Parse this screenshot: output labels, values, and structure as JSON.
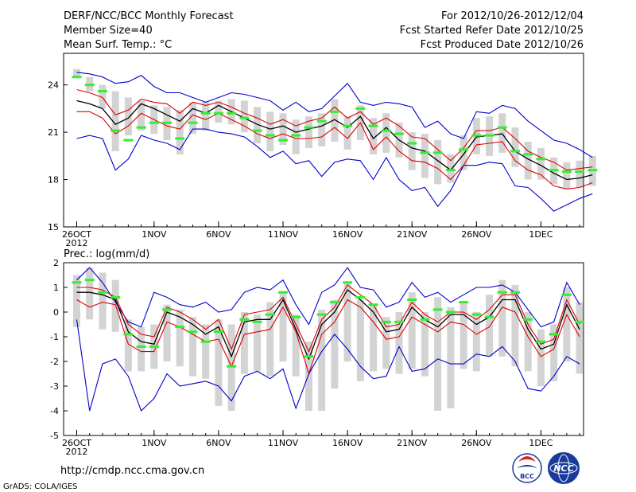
{
  "header": {
    "title": "DERF/NCC/BCC Monthly Forecast",
    "member_size": "Member Size=40",
    "period": "For 2012/10/26-2012/12/04",
    "started": "Fcst Started Refer Date 2012/10/25",
    "produced": "Fcst Produced Date 2012/10/26"
  },
  "footer": {
    "url": "http://cmdp.ncc.cma.gov.cn",
    "grads": "GrADS: COLA/IGES",
    "logo1": "BCC",
    "logo2": "NCC"
  },
  "colors": {
    "bar": "#d3d3d3",
    "observed": "#33ee33",
    "envelope": "#0000cc",
    "spread": "#dd0000",
    "mean": "#000000"
  },
  "chart_data": [
    {
      "type": "line",
      "title": "Mean Surf. Temp.: °C",
      "ylim": [
        15,
        26
      ],
      "yticks": [
        15,
        18,
        21,
        24
      ],
      "xticks": [
        {
          "day": 0,
          "label": "26OCT",
          "label2": "2012"
        },
        {
          "day": 6,
          "label": "1NOV"
        },
        {
          "day": 11,
          "label": "6NOV"
        },
        {
          "day": 16,
          "label": "11NOV"
        },
        {
          "day": 21,
          "label": "16NOV"
        },
        {
          "day": 26,
          "label": "21NOV"
        },
        {
          "day": 31,
          "label": "26NOV"
        },
        {
          "day": 36,
          "label": "1DEC"
        }
      ],
      "series": [
        {
          "name": "upper",
          "values": [
            24.8,
            24.7,
            24.5,
            24.1,
            24.2,
            24.6,
            23.9,
            23.5,
            23.5,
            23.2,
            22.9,
            23.2,
            23.5,
            23.4,
            23.2,
            23.0,
            22.4,
            22.9,
            22.3,
            22.5,
            23.3,
            24.1,
            22.9,
            22.7,
            22.9,
            22.8,
            22.6,
            21.3,
            21.7,
            20.9,
            20.6,
            22.3,
            22.2,
            22.7,
            22.5,
            21.7,
            21.1,
            20.5,
            20.3,
            19.9,
            19.4
          ]
        },
        {
          "name": "spread_hi",
          "values": [
            23.7,
            23.5,
            23.2,
            22.1,
            22.4,
            23.1,
            22.9,
            22.8,
            22.2,
            22.9,
            22.7,
            22.9,
            22.6,
            22.2,
            21.9,
            21.5,
            21.8,
            21.4,
            21.7,
            21.9,
            22.6,
            21.9,
            22.3,
            21.5,
            21.9,
            21.4,
            20.7,
            20.6,
            19.9,
            19.2,
            20.0,
            21.1,
            21.1,
            21.3,
            20.6,
            19.8,
            19.4,
            19.1,
            18.6,
            18.7,
            18.8
          ]
        },
        {
          "name": "mean",
          "values": [
            23.0,
            22.8,
            22.5,
            21.5,
            21.9,
            22.8,
            22.5,
            22.1,
            21.7,
            22.5,
            22.2,
            22.7,
            22.3,
            21.9,
            21.5,
            21.2,
            21.4,
            21.0,
            21.2,
            21.4,
            21.8,
            21.3,
            22.0,
            20.6,
            21.3,
            20.5,
            20.0,
            19.8,
            19.2,
            18.6,
            19.6,
            20.7,
            20.8,
            20.9,
            19.8,
            19.3,
            18.9,
            18.4,
            18.0,
            18.1,
            18.3
          ]
        },
        {
          "name": "spread_lo",
          "values": [
            22.3,
            22.3,
            21.9,
            20.9,
            21.4,
            22.2,
            21.8,
            21.4,
            21.2,
            22.1,
            21.8,
            22.2,
            21.8,
            21.4,
            20.9,
            20.6,
            20.9,
            20.6,
            20.6,
            20.7,
            21.3,
            20.6,
            21.6,
            19.9,
            20.7,
            19.8,
            19.2,
            19.1,
            18.7,
            18.0,
            18.9,
            20.2,
            20.3,
            20.4,
            19.2,
            18.6,
            18.3,
            17.6,
            17.4,
            17.5,
            17.8
          ]
        },
        {
          "name": "lower",
          "values": [
            20.6,
            20.8,
            20.6,
            18.6,
            19.3,
            20.8,
            20.5,
            20.3,
            19.9,
            21.2,
            21.2,
            21.0,
            20.9,
            20.7,
            20.1,
            19.4,
            19.8,
            19.0,
            19.2,
            18.2,
            19.1,
            19.3,
            19.2,
            18.0,
            19.4,
            18.0,
            17.3,
            17.5,
            16.3,
            17.3,
            18.9,
            18.9,
            19.1,
            19.0,
            17.6,
            17.5,
            16.8,
            16.0,
            16.4,
            16.8,
            17.1
          ]
        }
      ],
      "bars": [
        [
          24.5,
          25.0
        ],
        [
          23.6,
          24.5
        ],
        [
          22.5,
          24.0
        ],
        [
          19.8,
          23.6
        ],
        [
          20.8,
          23.2
        ],
        [
          21.1,
          23.0
        ],
        [
          20.9,
          22.7
        ],
        [
          20.5,
          22.6
        ],
        [
          19.6,
          22.4
        ],
        [
          20.9,
          22.9
        ],
        [
          21.1,
          22.9
        ],
        [
          21.6,
          23.0
        ],
        [
          21.5,
          23.1
        ],
        [
          21.0,
          23.0
        ],
        [
          20.3,
          22.6
        ],
        [
          19.8,
          22.3
        ],
        [
          20.2,
          22.2
        ],
        [
          19.6,
          21.8
        ],
        [
          20.0,
          22.0
        ],
        [
          20.1,
          22.2
        ],
        [
          20.4,
          23.1
        ],
        [
          19.9,
          22.0
        ],
        [
          20.5,
          22.7
        ],
        [
          19.6,
          21.9
        ],
        [
          19.7,
          22.2
        ],
        [
          19.4,
          21.6
        ],
        [
          18.6,
          21.0
        ],
        [
          18.1,
          20.9
        ],
        [
          17.7,
          20.5
        ],
        [
          17.8,
          19.6
        ],
        [
          18.6,
          20.8
        ],
        [
          19.6,
          21.9
        ],
        [
          19.5,
          22.0
        ],
        [
          19.7,
          22.2
        ],
        [
          18.8,
          21.3
        ],
        [
          18.0,
          20.4
        ],
        [
          18.0,
          20.0
        ],
        [
          17.7,
          19.4
        ],
        [
          17.4,
          19.1
        ],
        [
          17.5,
          19.2
        ],
        [
          17.6,
          19.5
        ]
      ],
      "observed": [
        24.5,
        24.0,
        23.6,
        21.1,
        20.5,
        21.3,
        21.6,
        21.6,
        20.6,
        21.6,
        22.2,
        22.2,
        22.2,
        21.9,
        21.1,
        20.8,
        20.5,
        20.8,
        21.3,
        21.7,
        22.3,
        21.4,
        22.5,
        21.4,
        21.1,
        20.9,
        20.3,
        19.7,
        19.7,
        18.6,
        19.9,
        20.8,
        20.8,
        21.3,
        19.8,
        19.6,
        19.3,
        18.6,
        18.5,
        18.5,
        18.6
      ]
    },
    {
      "type": "line",
      "title": "Prec.: log(mm/d)",
      "ylim": [
        -5,
        2
      ],
      "yticks": [
        -5,
        -4,
        -3,
        -2,
        -1,
        0,
        1,
        2
      ],
      "xticks": [
        {
          "day": 0,
          "label": "26OCT",
          "label2": "2012"
        },
        {
          "day": 6,
          "label": "1NOV"
        },
        {
          "day": 11,
          "label": "6NOV"
        },
        {
          "day": 16,
          "label": "11NOV"
        },
        {
          "day": 21,
          "label": "16NOV"
        },
        {
          "day": 26,
          "label": "21NOV"
        },
        {
          "day": 31,
          "label": "26NOV"
        },
        {
          "day": 36,
          "label": "1DEC"
        }
      ],
      "series": [
        {
          "name": "upper",
          "values": [
            1.3,
            1.8,
            1.2,
            0.4,
            -0.4,
            -0.6,
            0.8,
            0.6,
            0.3,
            0.2,
            0.4,
            0.0,
            0.1,
            0.8,
            1.0,
            0.9,
            1.3,
            0.3,
            -0.5,
            0.8,
            1.1,
            1.8,
            1.0,
            0.9,
            0.2,
            0.4,
            1.2,
            0.6,
            0.8,
            0.4,
            0.7,
            1.0,
            1.0,
            1.1,
            0.8,
            0.1,
            -0.6,
            -0.4,
            1.2,
            0.3
          ]
        },
        {
          "name": "spread_hi",
          "values": [
            1.0,
            1.0,
            0.9,
            0.6,
            -0.5,
            -0.9,
            -1.0,
            0.2,
            0.0,
            -0.3,
            -0.7,
            -0.3,
            -1.5,
            -0.1,
            0.0,
            0.1,
            0.6,
            -0.5,
            -1.6,
            -0.3,
            0.2,
            1.1,
            0.7,
            0.3,
            -0.6,
            -0.5,
            0.4,
            -0.1,
            -0.4,
            0.0,
            0.0,
            -0.3,
            0.1,
            0.7,
            0.7,
            -0.5,
            -1.3,
            -1.1,
            0.5,
            -0.5
          ]
        },
        {
          "name": "mean",
          "values": [
            0.8,
            0.8,
            0.7,
            0.5,
            -0.8,
            -1.2,
            -1.3,
            0.0,
            -0.2,
            -0.5,
            -0.9,
            -0.6,
            -1.8,
            -0.4,
            -0.3,
            -0.3,
            0.5,
            -0.7,
            -1.9,
            -0.5,
            0.0,
            0.9,
            0.5,
            0.0,
            -0.8,
            -0.7,
            0.2,
            -0.3,
            -0.6,
            -0.1,
            -0.1,
            -0.5,
            -0.2,
            0.5,
            0.5,
            -0.7,
            -1.5,
            -1.3,
            0.3,
            -0.7
          ]
        },
        {
          "name": "spread_lo",
          "values": [
            0.5,
            0.2,
            0.4,
            0.3,
            -1.3,
            -1.6,
            -1.6,
            -0.4,
            -0.6,
            -0.9,
            -1.2,
            -1.1,
            -2.2,
            -0.9,
            -0.8,
            -0.7,
            0.2,
            -0.8,
            -2.5,
            -0.9,
            -0.4,
            0.5,
            0.2,
            -0.4,
            -1.1,
            -1.0,
            -0.2,
            -0.5,
            -0.8,
            -0.4,
            -0.5,
            -0.9,
            -0.6,
            0.2,
            0.0,
            -1.0,
            -1.8,
            -1.5,
            -0.1,
            -1.0
          ]
        },
        {
          "name": "lower",
          "values": [
            -0.3,
            -4.0,
            -2.1,
            -1.9,
            -2.6,
            -4.0,
            -3.5,
            -2.5,
            -3.0,
            -2.9,
            -2.8,
            -3.0,
            -3.6,
            -2.6,
            -2.4,
            -2.7,
            -2.3,
            -3.9,
            -2.5,
            -1.6,
            -0.9,
            -1.5,
            -2.2,
            -2.7,
            -2.6,
            -1.4,
            -2.4,
            -2.3,
            -1.9,
            -2.1,
            -2.1,
            -1.7,
            -1.8,
            -1.4,
            -2.0,
            -3.1,
            -3.2,
            -2.6,
            -1.8,
            -2.1
          ]
        }
      ],
      "bars": [
        [
          -0.6,
          1.5
        ],
        [
          -0.3,
          1.8
        ],
        [
          -0.7,
          1.6
        ],
        [
          -0.8,
          1.3
        ],
        [
          -2.4,
          -0.3
        ],
        [
          -2.4,
          -0.6
        ],
        [
          -2.3,
          -0.5
        ],
        [
          -2.0,
          0.3
        ],
        [
          -2.2,
          0.1
        ],
        [
          -2.6,
          -0.2
        ],
        [
          -2.7,
          -0.5
        ],
        [
          -3.8,
          -0.3
        ],
        [
          -4.0,
          -0.5
        ],
        [
          -2.5,
          0.0
        ],
        [
          -2.4,
          -0.1
        ],
        [
          -2.6,
          0.4
        ],
        [
          -2.0,
          0.8
        ],
        [
          -2.6,
          -0.1
        ],
        [
          -4.0,
          -1.2
        ],
        [
          -4.0,
          0.1
        ],
        [
          -3.1,
          0.5
        ],
        [
          -2.0,
          1.2
        ],
        [
          -2.8,
          0.5
        ],
        [
          -2.4,
          0.3
        ],
        [
          -2.3,
          -0.2
        ],
        [
          -2.5,
          0.0
        ],
        [
          -2.3,
          0.8
        ],
        [
          -2.6,
          0.0
        ],
        [
          -4.0,
          0.6
        ],
        [
          -3.9,
          0.2
        ],
        [
          -2.3,
          0.4
        ],
        [
          -2.4,
          0.0
        ],
        [
          -1.8,
          0.7
        ],
        [
          -1.8,
          1.3
        ],
        [
          -2.2,
          1.1
        ],
        [
          -2.4,
          0.0
        ],
        [
          -3.0,
          -0.7
        ],
        [
          -2.8,
          -0.5
        ],
        [
          -2.0,
          1.0
        ],
        [
          -2.5,
          0.4
        ]
      ],
      "observed": [
        1.2,
        1.3,
        0.8,
        0.6,
        -0.9,
        -1.4,
        -1.4,
        0.1,
        -0.6,
        -0.8,
        -1.2,
        -0.8,
        -2.2,
        -0.3,
        -0.4,
        -0.1,
        0.8,
        -0.2,
        -1.8,
        -0.1,
        0.4,
        1.2,
        0.6,
        0.3,
        -0.4,
        -0.4,
        0.5,
        -0.3,
        0.1,
        0.0,
        0.4,
        -0.1,
        -0.2,
        0.8,
        0.8,
        -0.3,
        -1.2,
        -0.9,
        0.7,
        -0.4
      ]
    }
  ]
}
